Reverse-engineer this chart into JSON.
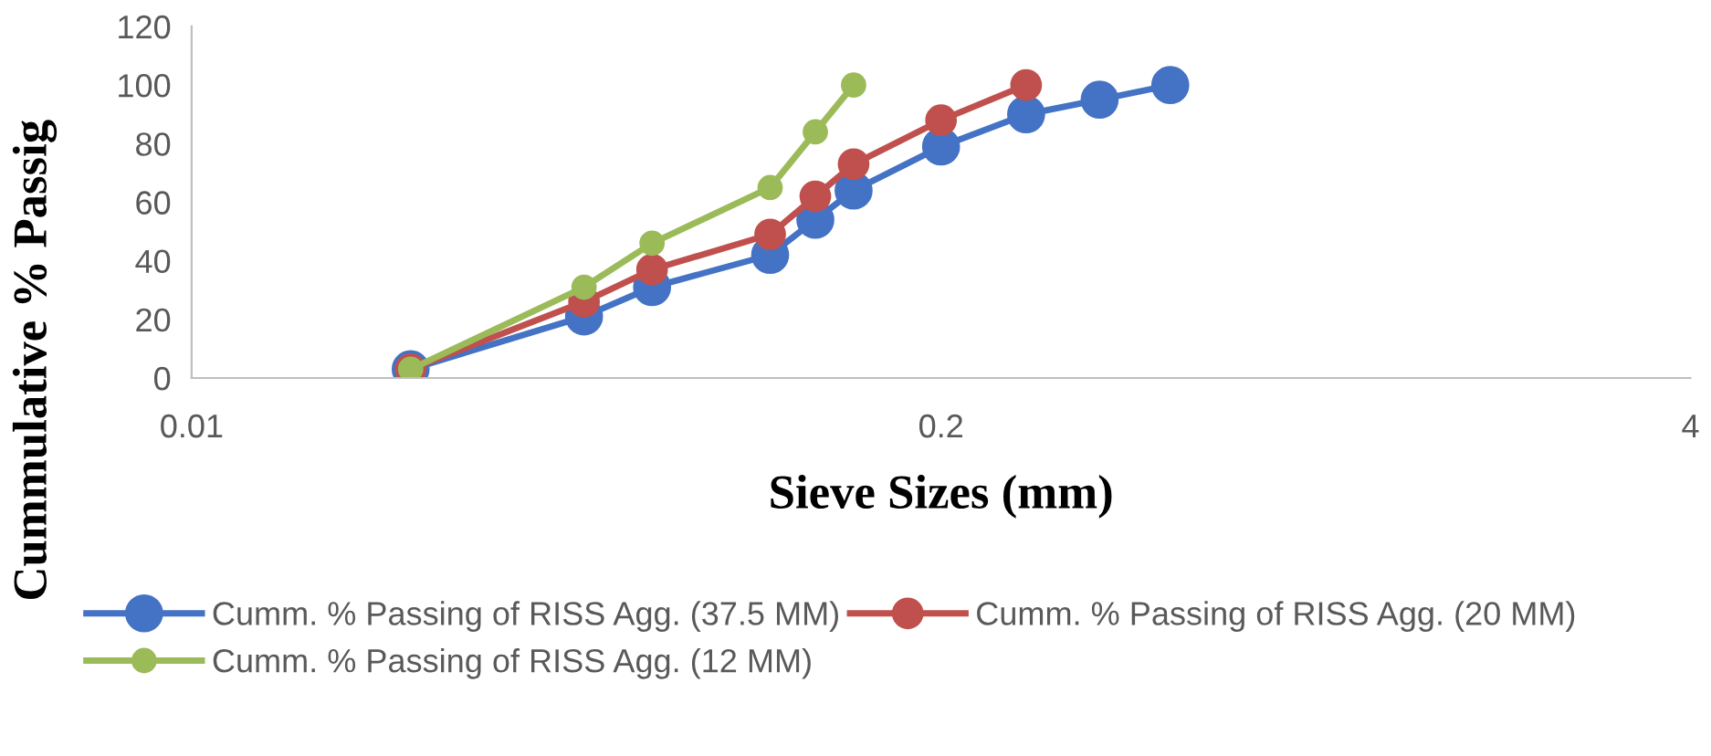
{
  "chart_data": {
    "type": "line",
    "xlabel": "Sieve Sizes (mm)",
    "ylabel": "Cummulative % Passig",
    "log": "x",
    "xlim": [
      0.01,
      4
    ],
    "xticks": [
      0.01,
      0.2,
      4
    ],
    "ylim": [
      0,
      120
    ],
    "yticks": [
      0,
      20,
      40,
      60,
      80,
      100,
      120
    ],
    "grid": false,
    "legend": "bottom",
    "marker": "circle",
    "line_style": "solid",
    "series": [
      {
        "name": "Cumm. % Passing of RISS Agg. (37.5 MM)",
        "color": "#4472c4",
        "x": [
          0.024,
          0.048,
          0.063,
          0.101,
          0.121,
          0.141,
          0.2,
          0.281,
          0.377,
          0.5
        ],
        "values": [
          3,
          21,
          31,
          42,
          54,
          64,
          79,
          90,
          95,
          100
        ]
      },
      {
        "name": "Cumm. % Passing of RISS Agg. (20 MM)",
        "color": "#c0504d",
        "x": [
          0.024,
          0.048,
          0.063,
          0.101,
          0.121,
          0.141,
          0.2,
          0.281
        ],
        "values": [
          3,
          26,
          37,
          49,
          62,
          73,
          88,
          100
        ]
      },
      {
        "name": "Cumm. % Passing of RISS Agg. (12 MM)",
        "color": "#9bbb59",
        "x": [
          0.024,
          0.048,
          0.063,
          0.101,
          0.121,
          0.141
        ],
        "values": [
          3,
          31,
          46,
          65,
          84,
          100
        ]
      }
    ]
  }
}
